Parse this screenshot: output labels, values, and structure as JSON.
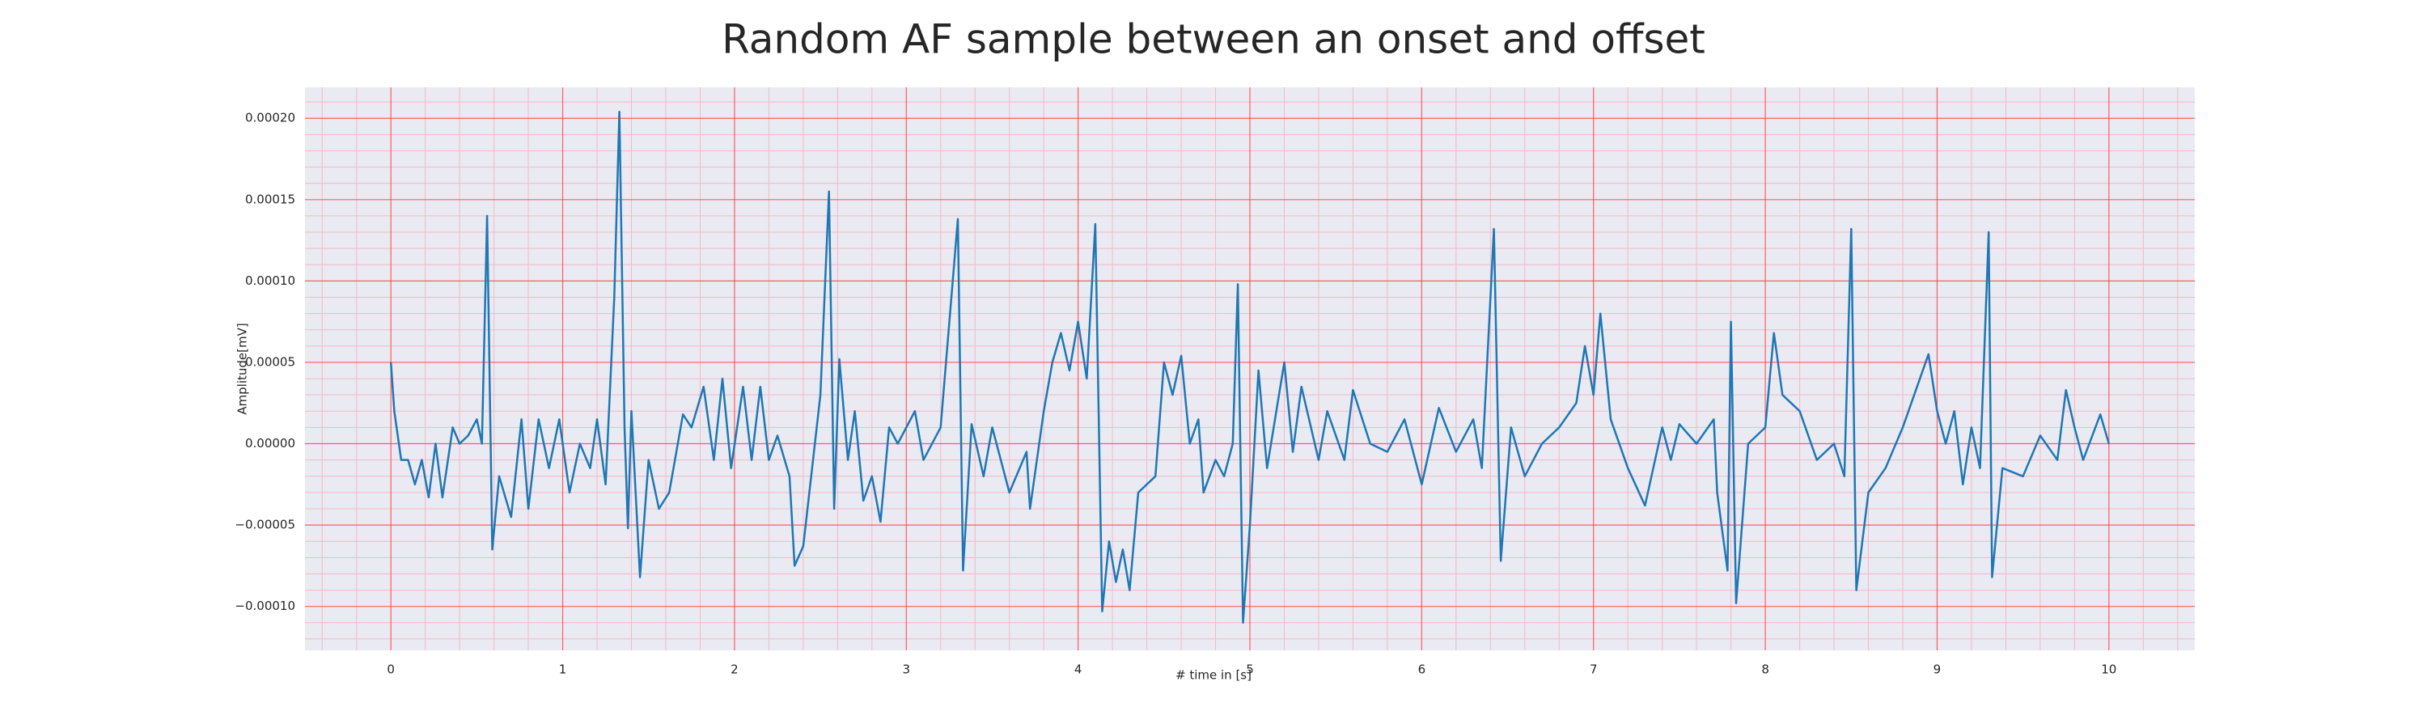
{
  "chart_data": {
    "type": "line",
    "title": "Random AF sample between an onset and offset",
    "xlabel": "# time in [s]",
    "ylabel": "Amplitude[mV]",
    "color": "#1f77b4",
    "grid": true,
    "minor_grid": true,
    "grid_color": "#ff3b3b",
    "minor_grid_color": "#f4b8c6",
    "background": "#eaeaf2",
    "xlim": [
      -0.5,
      10.5
    ],
    "ylim": [
      -0.000127,
      0.000219
    ],
    "xticks": [
      0,
      1,
      2,
      3,
      4,
      5,
      6,
      7,
      8,
      9,
      10
    ],
    "yticks": [
      {
        "value": 0.0002,
        "label": "0.00020"
      },
      {
        "value": 0.00015,
        "label": "0.00015"
      },
      {
        "value": 0.0001,
        "label": "0.00010"
      },
      {
        "value": 5e-05,
        "label": "0.00005"
      },
      {
        "value": 0,
        "label": "0.00000"
      },
      {
        "value": -5e-05,
        "label": "−0.00005"
      },
      {
        "value": -0.0001,
        "label": "−0.00010"
      }
    ],
    "x": [
      0,
      0.02,
      0.06,
      0.1,
      0.14,
      0.18,
      0.22,
      0.26,
      0.3,
      0.36,
      0.4,
      0.45,
      0.5,
      0.53,
      0.56,
      0.59,
      0.63,
      0.7,
      0.76,
      0.8,
      0.86,
      0.92,
      0.98,
      1.04,
      1.1,
      1.16,
      1.2,
      1.25,
      1.3,
      1.33,
      1.36,
      1.38,
      1.4,
      1.45,
      1.5,
      1.56,
      1.62,
      1.7,
      1.75,
      1.82,
      1.88,
      1.93,
      1.98,
      2.05,
      2.1,
      2.15,
      2.2,
      2.25,
      2.32,
      2.35,
      2.4,
      2.5,
      2.55,
      2.58,
      2.61,
      2.66,
      2.7,
      2.75,
      2.8,
      2.85,
      2.9,
      2.95,
      3.05,
      3.1,
      3.2,
      3.3,
      3.33,
      3.38,
      3.45,
      3.5,
      3.6,
      3.7,
      3.72,
      3.8,
      3.85,
      3.9,
      3.95,
      4.0,
      4.05,
      4.1,
      4.14,
      4.18,
      4.22,
      4.26,
      4.3,
      4.35,
      4.45,
      4.5,
      4.55,
      4.6,
      4.65,
      4.7,
      4.73,
      4.8,
      4.85,
      4.9,
      4.93,
      4.96,
      5.0,
      5.05,
      5.1,
      5.2,
      5.25,
      5.3,
      5.4,
      5.45,
      5.55,
      5.6,
      5.7,
      5.8,
      5.9,
      6.0,
      6.1,
      6.2,
      6.3,
      6.35,
      6.42,
      6.46,
      6.52,
      6.6,
      6.7,
      6.8,
      6.9,
      6.95,
      7.0,
      7.04,
      7.1,
      7.2,
      7.3,
      7.4,
      7.45,
      7.5,
      7.6,
      7.7,
      7.72,
      7.78,
      7.8,
      7.83,
      7.9,
      8.0,
      8.05,
      8.1,
      8.2,
      8.3,
      8.4,
      8.46,
      8.5,
      8.53,
      8.6,
      8.7,
      8.8,
      8.9,
      8.95,
      9.0,
      9.05,
      9.1,
      9.15,
      9.2,
      9.25,
      9.3,
      9.32,
      9.38,
      9.5,
      9.6,
      9.7,
      9.75,
      9.8,
      9.85,
      9.95,
      10.0
    ],
    "values": [
      5e-05,
      2e-05,
      -1e-05,
      -1e-05,
      -2.5e-05,
      -1e-05,
      -3.3e-05,
      0,
      -3.3e-05,
      1e-05,
      0,
      5e-06,
      1.5e-05,
      0,
      0.00014,
      -6.5e-05,
      -2e-05,
      -4.5e-05,
      1.5e-05,
      -4e-05,
      1.5e-05,
      -1.5e-05,
      1.5e-05,
      -3e-05,
      0,
      -1.5e-05,
      1.5e-05,
      -2.5e-05,
      9e-05,
      0.000204,
      1e-05,
      -5.2e-05,
      2e-05,
      -8.2e-05,
      -1e-05,
      -4e-05,
      -3e-05,
      1.8e-05,
      1e-05,
      3.5e-05,
      -1e-05,
      4e-05,
      -1.5e-05,
      3.5e-05,
      -1e-05,
      3.5e-05,
      -1e-05,
      5e-06,
      -2e-05,
      -7.5e-05,
      -6.3e-05,
      3e-05,
      0.000155,
      -4e-05,
      5.2e-05,
      -1e-05,
      2e-05,
      -3.5e-05,
      -2e-05,
      -4.8e-05,
      1e-05,
      0,
      2e-05,
      -1e-05,
      1e-05,
      0.000138,
      -7.8e-05,
      1.2e-05,
      -2e-05,
      1e-05,
      -3e-05,
      -5e-06,
      -4e-05,
      2e-05,
      5e-05,
      6.8e-05,
      4.5e-05,
      7.5e-05,
      4e-05,
      0.000135,
      -0.000103,
      -6e-05,
      -8.5e-05,
      -6.5e-05,
      -9e-05,
      -3e-05,
      -2e-05,
      5e-05,
      3e-05,
      5.4e-05,
      0,
      1.5e-05,
      -3e-05,
      -1e-05,
      -2e-05,
      0,
      9.8e-05,
      -0.00011,
      -5e-05,
      4.5e-05,
      -1.5e-05,
      5e-05,
      -5e-06,
      3.5e-05,
      -1e-05,
      2e-05,
      -1e-05,
      3.3e-05,
      0,
      -5e-06,
      1.5e-05,
      -2.5e-05,
      2.2e-05,
      -5e-06,
      1.5e-05,
      -1.5e-05,
      0.000132,
      -7.2e-05,
      1e-05,
      -2e-05,
      0,
      1e-05,
      2.5e-05,
      6e-05,
      3e-05,
      8e-05,
      1.5e-05,
      -1.5e-05,
      -3.8e-05,
      1e-05,
      -1e-05,
      1.2e-05,
      0,
      1.5e-05,
      -3e-05,
      -7.8e-05,
      7.5e-05,
      -9.8e-05,
      0,
      1e-05,
      6.8e-05,
      3e-05,
      2e-05,
      -1e-05,
      0,
      -2e-05,
      0.000132,
      -9e-05,
      -3e-05,
      -1.5e-05,
      1e-05,
      4e-05,
      5.5e-05,
      2e-05,
      0,
      2e-05,
      -2.5e-05,
      1e-05,
      -1.5e-05,
      0.00013,
      -8.2e-05,
      -1.5e-05,
      -2e-05,
      5e-06,
      -1e-05,
      3.3e-05,
      1e-05,
      -1e-05,
      1.8e-05,
      0
    ]
  }
}
